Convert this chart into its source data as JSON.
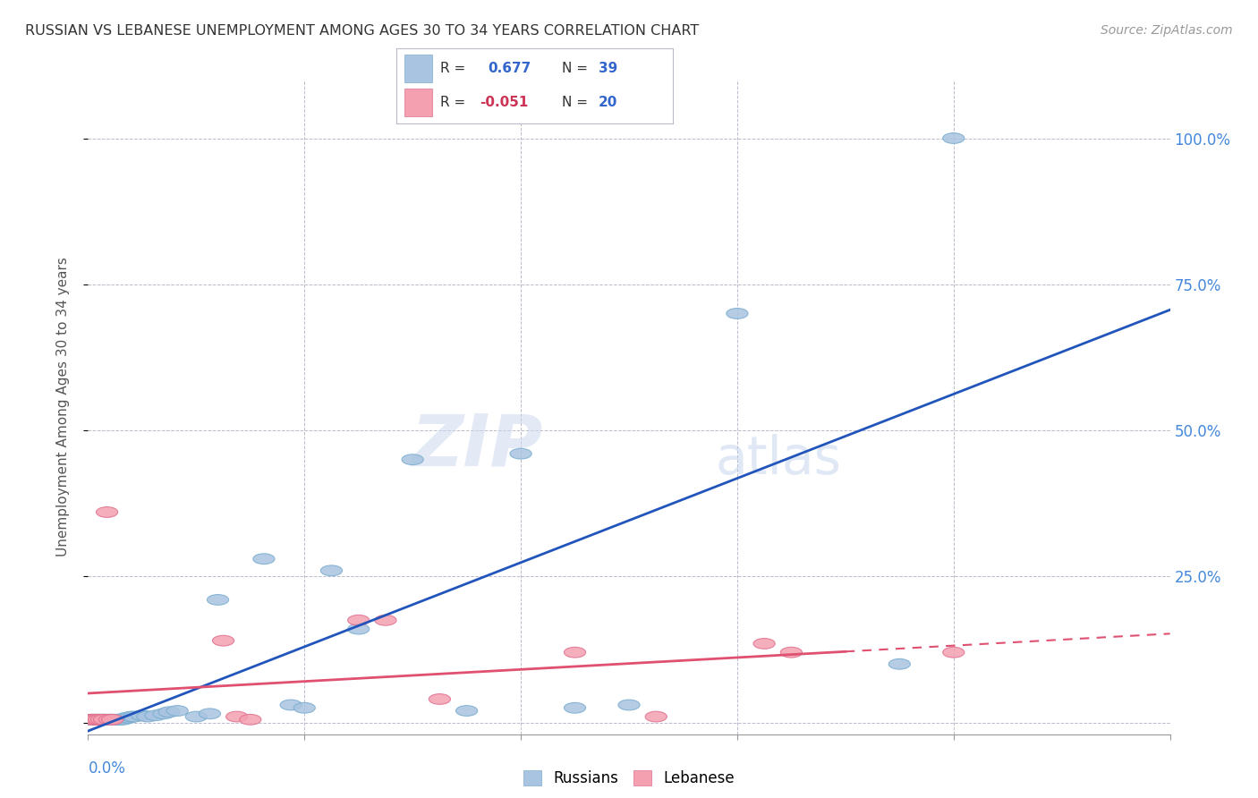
{
  "title": "RUSSIAN VS LEBANESE UNEMPLOYMENT AMONG AGES 30 TO 34 YEARS CORRELATION CHART",
  "source": "Source: ZipAtlas.com",
  "ylabel": "Unemployment Among Ages 30 to 34 years",
  "xlim": [
    0.0,
    0.4
  ],
  "ylim": [
    -0.02,
    1.1
  ],
  "yticks": [
    0.0,
    0.25,
    0.5,
    0.75,
    1.0
  ],
  "ytick_labels": [
    "",
    "25.0%",
    "50.0%",
    "75.0%",
    "100.0%"
  ],
  "background_color": "#ffffff",
  "watermark_zip": "ZIP",
  "watermark_atlas": "atlas",
  "russian_color": "#a8c4e0",
  "russian_edge_color": "#7aadd0",
  "lebanese_color": "#f4a0b0",
  "lebanese_edge_color": "#e07090",
  "russian_line_color": "#2255bb",
  "lebanese_line_color": "#e05070",
  "legend_russian_R": "0.677",
  "legend_russian_N": "39",
  "legend_lebanese_R": "-0.051",
  "legend_lebanese_N": "20",
  "russians_x": [
    0.001,
    0.002,
    0.003,
    0.004,
    0.005,
    0.006,
    0.007,
    0.008,
    0.009,
    0.01,
    0.011,
    0.012,
    0.013,
    0.014,
    0.015,
    0.016,
    0.017,
    0.02,
    0.022,
    0.025,
    0.028,
    0.03,
    0.033,
    0.04,
    0.045,
    0.048,
    0.065,
    0.075,
    0.08,
    0.09,
    0.1,
    0.12,
    0.14,
    0.16,
    0.18,
    0.2,
    0.24,
    0.3,
    0.32
  ],
  "russians_y": [
    0.005,
    0.005,
    0.005,
    0.005,
    0.005,
    0.005,
    0.005,
    0.005,
    0.005,
    0.005,
    0.005,
    0.005,
    0.005,
    0.008,
    0.008,
    0.01,
    0.01,
    0.012,
    0.01,
    0.012,
    0.015,
    0.018,
    0.02,
    0.01,
    0.015,
    0.21,
    0.28,
    0.03,
    0.025,
    0.26,
    0.16,
    0.45,
    0.02,
    0.46,
    0.025,
    0.03,
    0.7,
    0.1,
    1.0
  ],
  "lebanese_x": [
    0.001,
    0.002,
    0.003,
    0.004,
    0.005,
    0.006,
    0.007,
    0.008,
    0.009,
    0.05,
    0.055,
    0.06,
    0.1,
    0.11,
    0.13,
    0.18,
    0.21,
    0.25,
    0.26,
    0.32
  ],
  "lebanese_y": [
    0.005,
    0.005,
    0.005,
    0.005,
    0.005,
    0.005,
    0.36,
    0.005,
    0.005,
    0.14,
    0.01,
    0.005,
    0.175,
    0.175,
    0.04,
    0.12,
    0.01,
    0.135,
    0.12,
    0.12
  ]
}
